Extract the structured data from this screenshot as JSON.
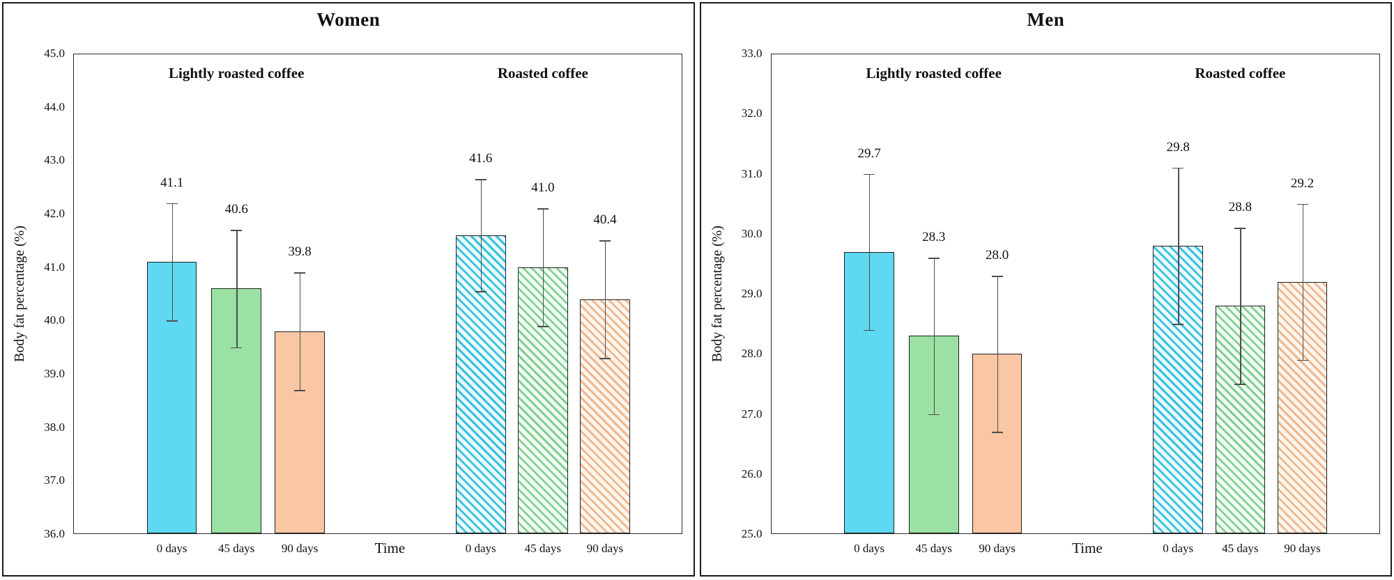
{
  "figure": {
    "background": "#ffffff",
    "panel_border_color": "#1a1a1a",
    "axis_box_color": "#2b2b2b",
    "error_bar_color": "#4d4d4d"
  },
  "colors": {
    "solid_fill": [
      "#5FD8F2",
      "#9AE1A3",
      "#FAC7A4"
    ],
    "hatch_stripe": [
      "#38C2DE",
      "#82D192",
      "#EFB88F"
    ],
    "hatch_bg": [
      "#EAFAFD",
      "#F2FBF3",
      "#FDF5EE"
    ],
    "bar_outline": "#1f1f1f"
  },
  "chart_data": [
    {
      "type": "bar",
      "title": "Women",
      "ylabel": "Body fat percentage (%)",
      "xlabel": "Time",
      "ylim": [
        36.0,
        45.0
      ],
      "ytick_step": 1.0,
      "ytick_labels": [
        "45.0",
        "44.0",
        "43.0",
        "42.0",
        "41.0",
        "40.0",
        "39.0",
        "38.0",
        "37.0",
        "36.0"
      ],
      "categories": [
        "0 days",
        "45 days",
        "90 days"
      ],
      "grid": false,
      "legend": false,
      "groups": [
        {
          "label": "Lightly roasted coffee",
          "pattern": "solid",
          "bars": [
            {
              "category": "0 days",
              "value": 41.1,
              "sd": 1.1
            },
            {
              "category": "45 days",
              "value": 40.6,
              "sd": 1.1
            },
            {
              "category": "90 days",
              "value": 39.8,
              "sd": 1.1
            }
          ]
        },
        {
          "label": "Roasted coffee",
          "pattern": "diagonal-hatch",
          "bars": [
            {
              "category": "0 days",
              "value": 41.6,
              "sd": 1.05
            },
            {
              "category": "45 days",
              "value": 41.0,
              "sd": 1.1
            },
            {
              "category": "90 days",
              "value": 40.4,
              "sd": 1.1
            }
          ]
        }
      ]
    },
    {
      "type": "bar",
      "title": "Men",
      "ylabel": "Body fat percentage (%)",
      "xlabel": "Time",
      "ylim": [
        25.0,
        33.0
      ],
      "ytick_step": 1.0,
      "ytick_labels": [
        "33.0",
        "32.0",
        "31.0",
        "30.0",
        "29.0",
        "28.0",
        "27.0",
        "26.0",
        "25.0"
      ],
      "categories": [
        "0 days",
        "45 days",
        "90 days"
      ],
      "grid": false,
      "legend": false,
      "groups": [
        {
          "label": "Lightly roasted coffee",
          "pattern": "solid",
          "bars": [
            {
              "category": "0 days",
              "value": 29.7,
              "sd": 1.3
            },
            {
              "category": "45 days",
              "value": 28.3,
              "sd": 1.3
            },
            {
              "category": "90 days",
              "value": 28.0,
              "sd": 1.3
            }
          ]
        },
        {
          "label": "Roasted coffee",
          "pattern": "diagonal-hatch",
          "bars": [
            {
              "category": "0 days",
              "value": 29.8,
              "sd": 1.3
            },
            {
              "category": "45 days",
              "value": 28.8,
              "sd": 1.3
            },
            {
              "category": "90 days",
              "value": 29.2,
              "sd": 1.3
            }
          ]
        }
      ]
    }
  ]
}
